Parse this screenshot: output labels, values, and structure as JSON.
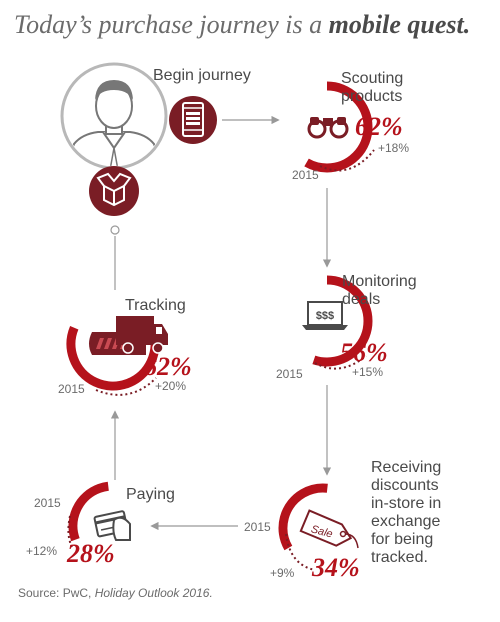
{
  "title": {
    "prefix": "Today’s purchase journey is a ",
    "emphasis": "mobile quest."
  },
  "steps": {
    "begin": {
      "label": "Begin journey"
    },
    "scouting": {
      "label_line1": "Scouting",
      "label_line2": "products",
      "value": "62%",
      "baseline_year": "2015",
      "change": "+18%"
    },
    "monitoring": {
      "label_line1": "Monitoring",
      "label_line2": "deals",
      "value": "56%",
      "baseline_year": "2015",
      "change": "+15%",
      "screen_text": "$$$"
    },
    "receiving": {
      "label_lines": [
        "Receiving",
        "discounts",
        "in-store in",
        "exchange",
        "for being",
        "tracked."
      ],
      "value": "34%",
      "baseline_year": "2015",
      "change": "+9%",
      "tag_text": "Sale"
    },
    "paying": {
      "label": "Paying",
      "value": "28%",
      "baseline_year": "2015",
      "change": "+12%"
    },
    "tracking": {
      "label": "Tracking",
      "value": "62%",
      "baseline_year": "2015",
      "change": "+20%"
    }
  },
  "source": {
    "prefix": "Source: PwC, ",
    "publication": "Holiday Outlook 2016."
  },
  "colors": {
    "accent": "#b5121b",
    "dark_red": "#7a1d25",
    "text": "#4a4a4a",
    "muted": "#6b6b6b",
    "arrow": "#999999"
  },
  "icons": [
    "person-icon",
    "phone-icon",
    "box-icon",
    "binoculars-icon",
    "laptop-icon",
    "sale-tag-icon",
    "credit-card-icon",
    "truck-icon"
  ]
}
